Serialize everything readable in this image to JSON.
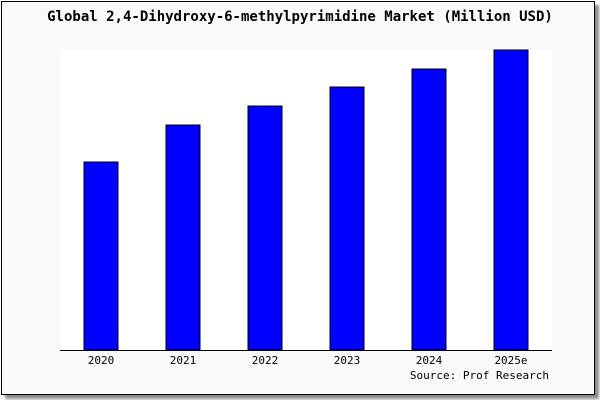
{
  "chart_data": {
    "type": "bar",
    "title": "Global 2,4-Dihydroxy-6-methylpyrimidine Market (Million USD)",
    "categories": [
      "2020",
      "2021",
      "2022",
      "2023",
      "2024",
      "2025e"
    ],
    "values": [
      188,
      225,
      244,
      263,
      281,
      300
    ],
    "ylim": [
      0,
      300
    ],
    "xlabel": "",
    "ylabel": "",
    "grid": false,
    "bar_color": "#0000ff",
    "source": "Source: Prof Research"
  }
}
